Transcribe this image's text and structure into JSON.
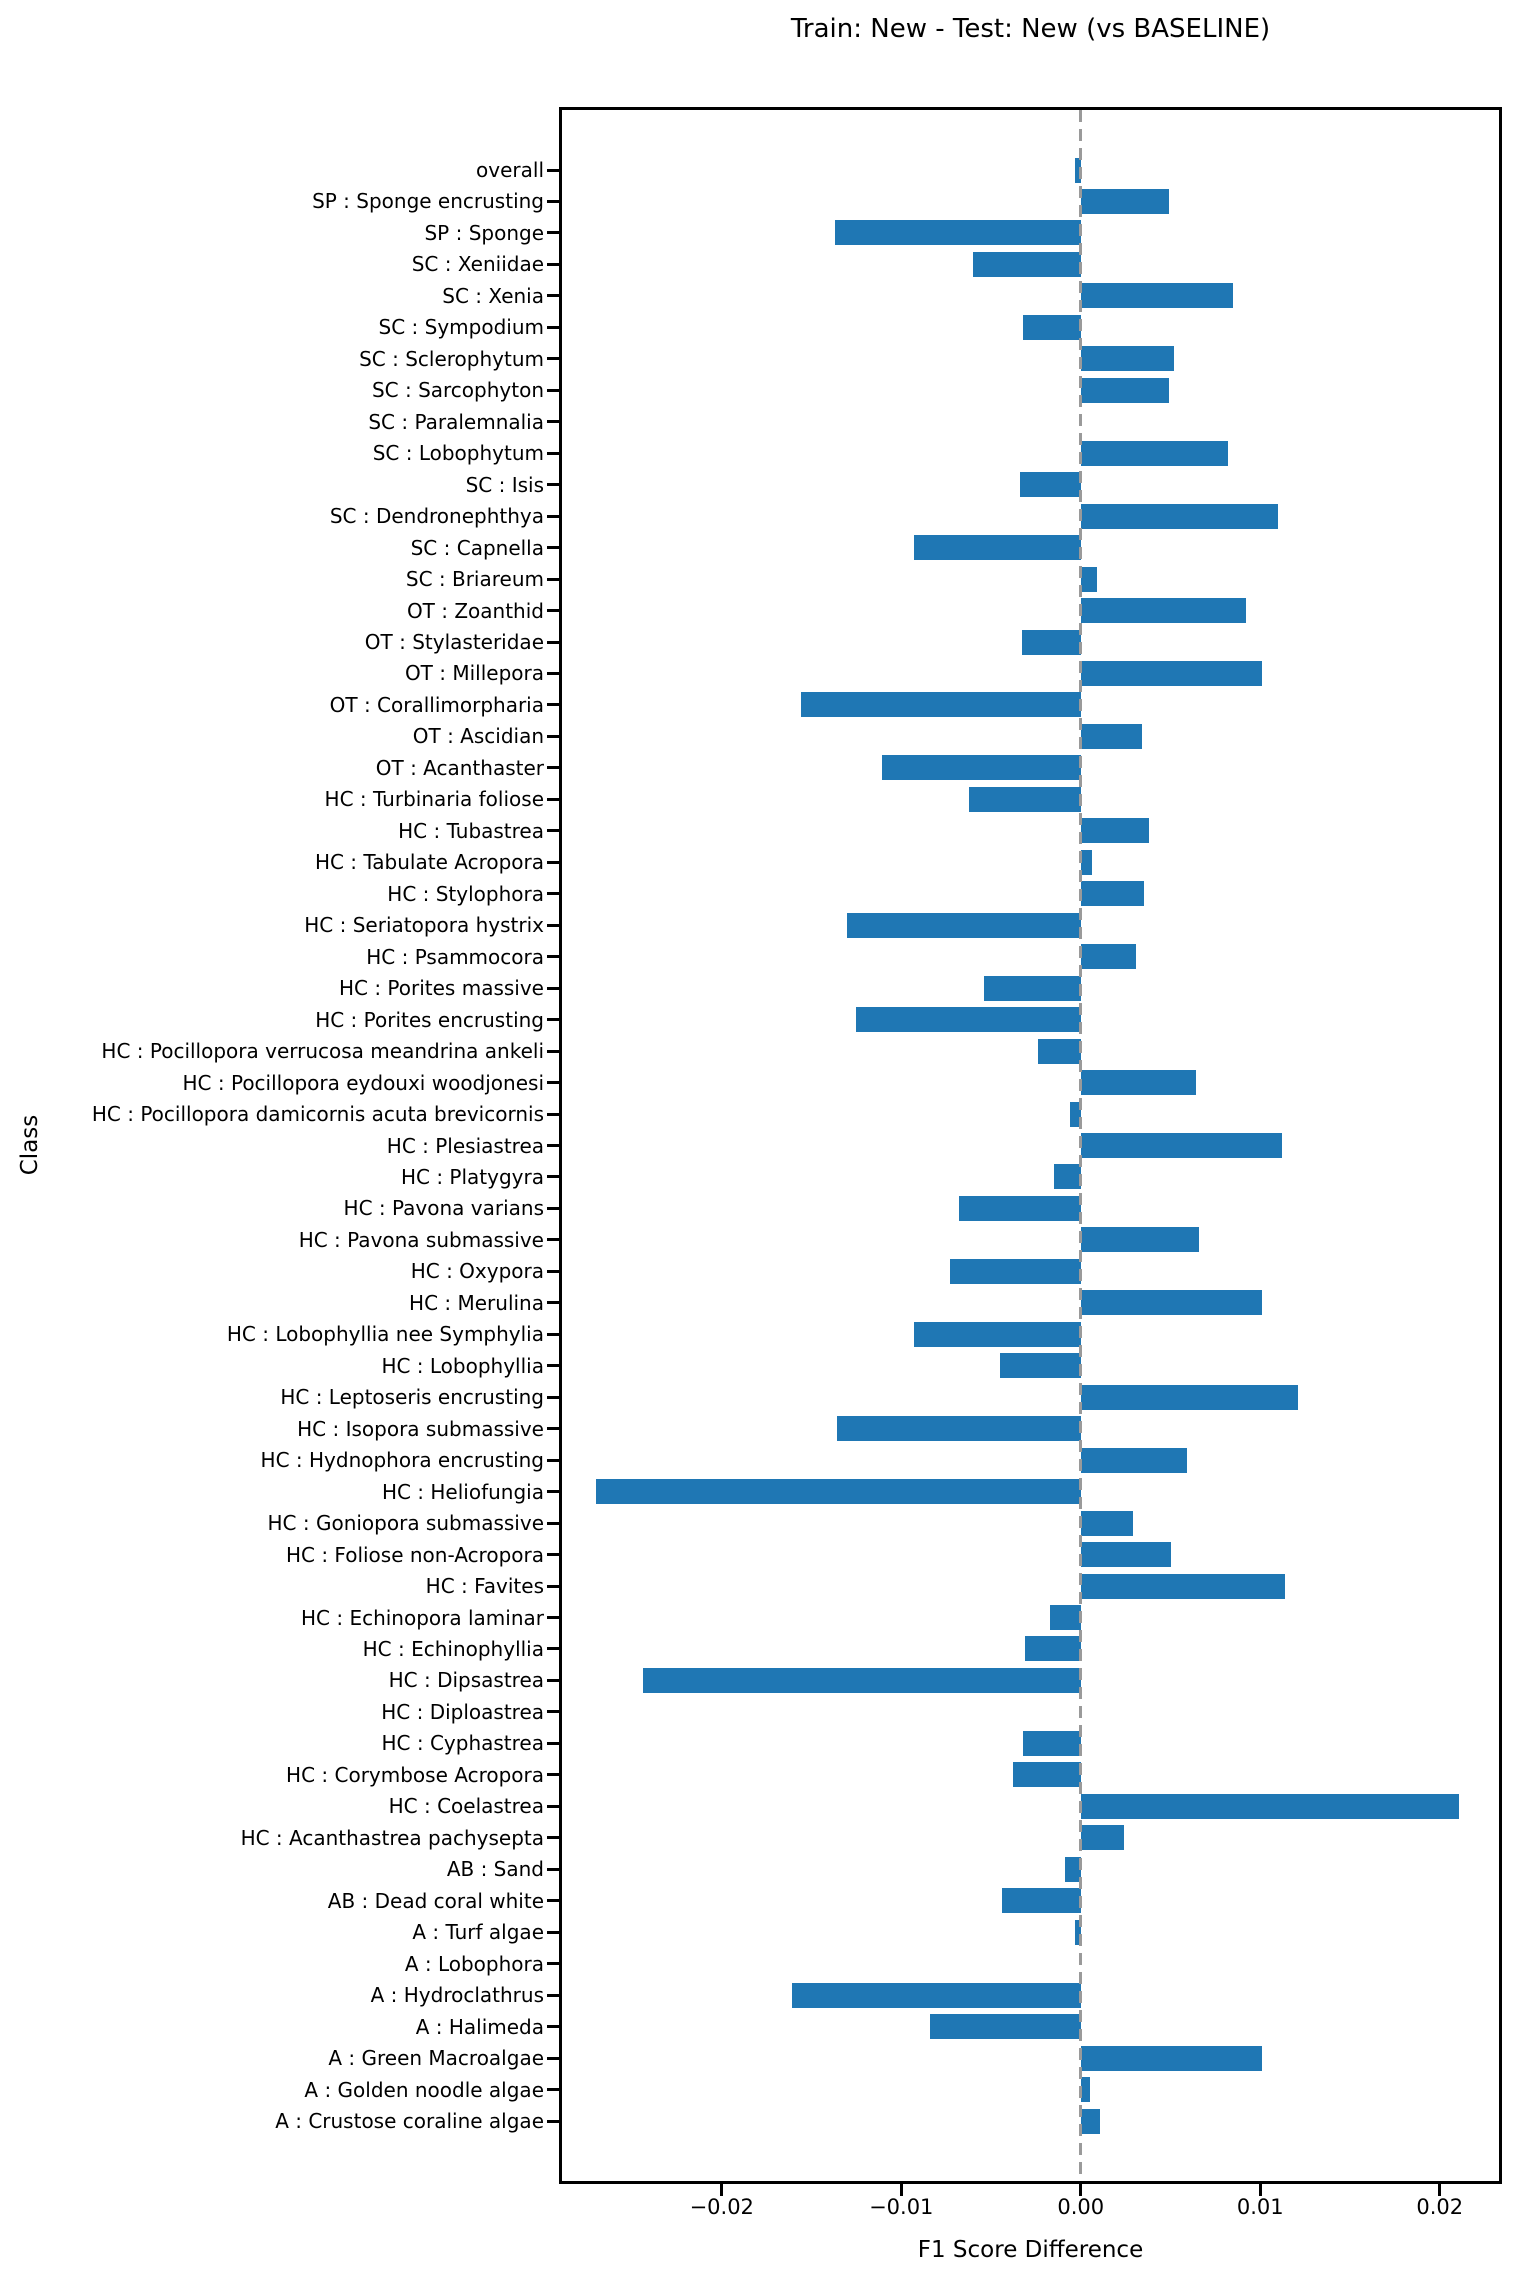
{
  "chart_data": {
    "type": "bar",
    "orientation": "horizontal",
    "title": "Train: New - Test: New (vs BASELINE)",
    "xlabel": "F1 Score Difference",
    "ylabel": "Class",
    "xlim": [
      -0.0289,
      0.0233
    ],
    "grid": false,
    "legend": false,
    "bar_color": "#1f77b4",
    "zero_line": {
      "value": 0,
      "style": "dashed",
      "color": "#9a9a9a"
    },
    "xticks": [
      {
        "value": -0.02,
        "label": "−0.02"
      },
      {
        "value": -0.01,
        "label": "−0.01"
      },
      {
        "value": 0.0,
        "label": "0.00"
      },
      {
        "value": 0.01,
        "label": "0.01"
      },
      {
        "value": 0.02,
        "label": "0.02"
      }
    ],
    "categories": [
      "overall",
      "SP : Sponge encrusting",
      "SP : Sponge",
      "SC : Xeniidae",
      "SC : Xenia",
      "SC : Sympodium",
      "SC : Sclerophytum",
      "SC : Sarcophyton",
      "SC : Paralemnalia",
      "SC : Lobophytum",
      "SC : Isis",
      "SC : Dendronephthya",
      "SC : Capnella",
      "SC : Briareum",
      "OT : Zoanthid",
      "OT : Stylasteridae",
      "OT : Millepora",
      "OT : Corallimorpharia",
      "OT : Ascidian",
      "OT : Acanthaster",
      "HC : Turbinaria foliose",
      "HC : Tubastrea",
      "HC : Tabulate Acropora",
      "HC : Stylophora",
      "HC : Seriatopora hystrix",
      "HC : Psammocora",
      "HC : Porites massive",
      "HC : Porites encrusting",
      "HC : Pocillopora verrucosa meandrina ankeli",
      "HC : Pocillopora eydouxi woodjonesi",
      "HC : Pocillopora damicornis acuta brevicornis",
      "HC : Plesiastrea",
      "HC : Platygyra",
      "HC : Pavona varians",
      "HC : Pavona submassive",
      "HC : Oxypora",
      "HC : Merulina",
      "HC : Lobophyllia nee Symphylia",
      "HC : Lobophyllia",
      "HC : Leptoseris encrusting",
      "HC : Isopora submassive",
      "HC : Hydnophora encrusting",
      "HC : Heliofungia",
      "HC : Goniopora submassive",
      "HC : Foliose non-Acropora",
      "HC : Favites",
      "HC : Echinopora laminar",
      "HC : Echinophyllia",
      "HC : Dipsastrea",
      "HC : Diploastrea",
      "HC : Cyphastrea",
      "HC : Corymbose Acropora",
      "HC : Coelastrea",
      "HC : Acanthastrea pachysepta",
      "AB : Sand",
      "AB : Dead coral white",
      "A : Turf algae",
      "A : Lobophora",
      "A : Hydroclathrus",
      "A : Halimeda",
      "A : Green Macroalgae",
      "A : Golden noodle algae",
      "A : Crustose coraline algae"
    ],
    "values": [
      -0.0003,
      0.0049,
      -0.0137,
      -0.006,
      0.0085,
      -0.0032,
      0.0052,
      0.0049,
      0.0,
      0.0082,
      -0.0034,
      0.011,
      -0.0093,
      0.0009,
      0.0092,
      -0.0033,
      0.0101,
      -0.0156,
      0.0034,
      -0.0111,
      -0.0062,
      0.0038,
      0.0006,
      0.0035,
      -0.013,
      0.0031,
      -0.0054,
      -0.0125,
      -0.0024,
      0.0064,
      -0.0006,
      0.0112,
      -0.0015,
      -0.0068,
      0.0066,
      -0.0073,
      0.0101,
      -0.0093,
      -0.0045,
      0.0121,
      -0.0136,
      0.0059,
      -0.027,
      0.0029,
      0.005,
      0.0114,
      -0.0017,
      -0.0031,
      -0.0244,
      0.0,
      -0.0032,
      -0.0038,
      0.0211,
      0.0024,
      -0.0009,
      -0.0044,
      -0.0003,
      0.0,
      -0.0161,
      -0.0084,
      0.0101,
      0.0005,
      0.0011
    ]
  }
}
